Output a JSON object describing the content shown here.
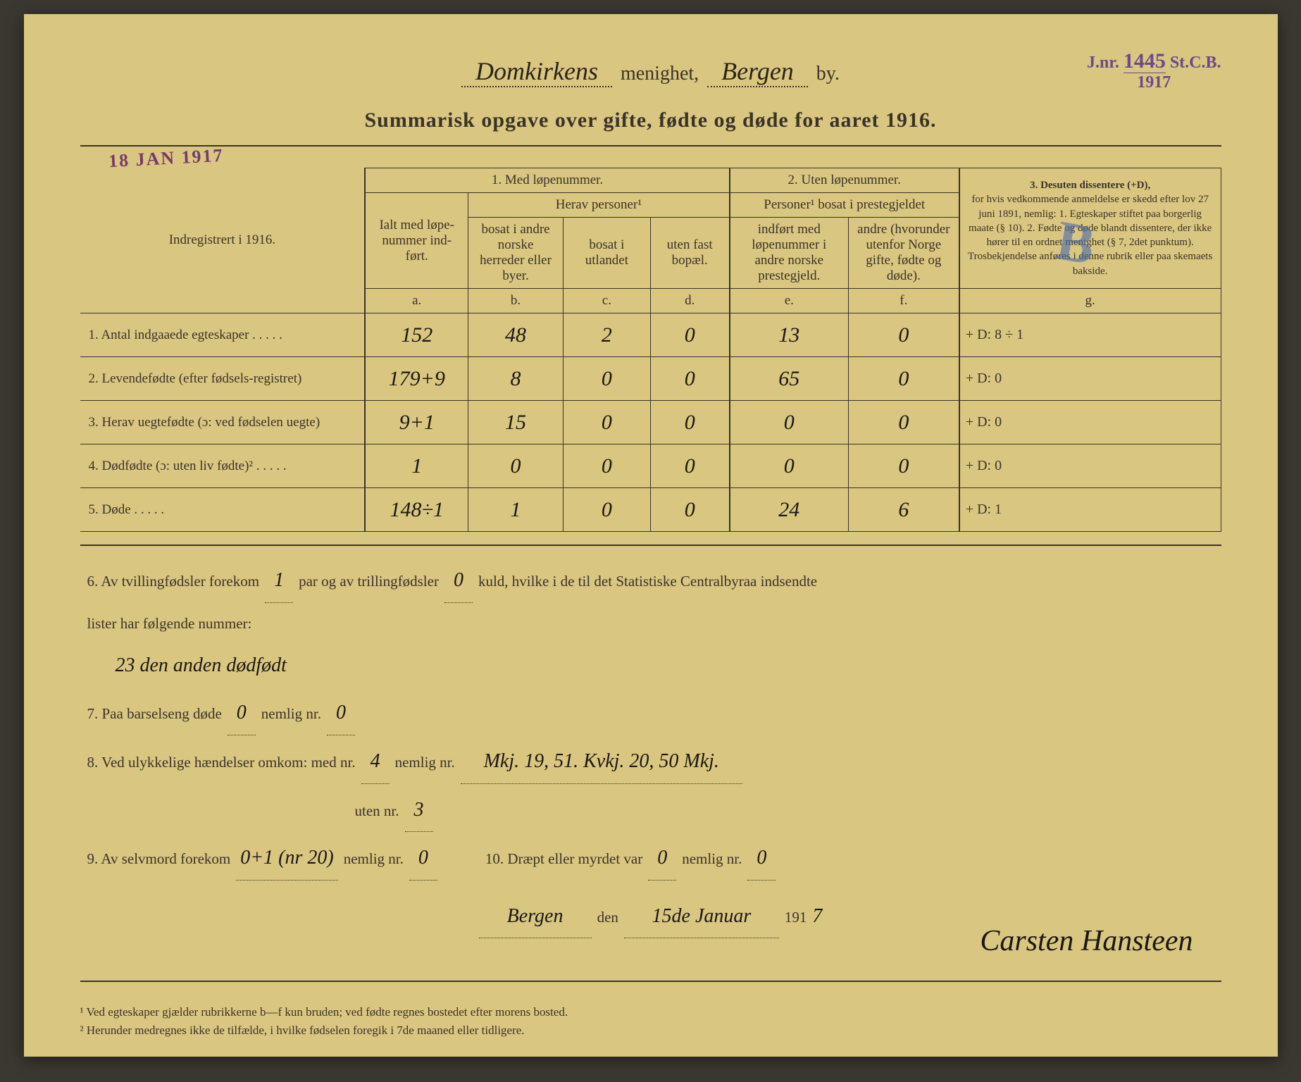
{
  "header": {
    "parish": "Domkirkens",
    "parish_label": "menighet,",
    "city": "Bergen",
    "city_label": "by.",
    "subtitle": "Summarisk opgave over gifte, fødte og døde for aaret 1916."
  },
  "stamps": {
    "date": "18 JAN 1917",
    "right_prefix": "J.nr.",
    "right_num": "1445",
    "right_suffix": "St.C.B.",
    "right_year": "1917",
    "blue_mark": "B"
  },
  "table_headers": {
    "registered_label": "Indregistrert i 1916.",
    "col1_title": "1. Med løpenummer.",
    "col1_left": "Ialt med løpe-nummer ind-ført.",
    "herav": "Herav personer¹",
    "col_b": "bosat i andre norske herreder eller byer.",
    "col_c": "bosat i utlandet",
    "col_d": "uten fast bopæl.",
    "col2_title": "2. Uten løpenummer.",
    "col2_sub": "Personer¹ bosat i prestegjeldet",
    "col_e": "indført med løpenummer i andre norske prestegjeld.",
    "col_f": "andre (hvorunder utenfor Norge gifte, fødte og døde).",
    "col3_title": "3. Desuten dissentere (+D),",
    "col3_text": "for hvis vedkommende anmeldelse er skedd efter lov 27 juni 1891, nemlig: 1. Egteskaper stiftet paa borgerlig maate (§ 10). 2. Fødte og døde blandt dissentere, der ikke hører til en ordnet menighet (§ 7, 2det punktum).",
    "col3_foot": "Trosbekjendelse anføres i denne rubrik eller paa skemaets bakside.",
    "letters": {
      "a": "a.",
      "b": "b.",
      "c": "c.",
      "d": "d.",
      "e": "e.",
      "f": "f.",
      "g": "g."
    }
  },
  "rows": [
    {
      "n": "1.",
      "label": "Antal indgaaede egteskaper",
      "a": "152",
      "b": "48",
      "c": "2",
      "d": "0",
      "e": "13",
      "f": "0",
      "g": "+ D: 8 ÷ 1"
    },
    {
      "n": "2.",
      "label": "Levendefødte (efter fødsels-registret)",
      "a": "179+9",
      "b": "8",
      "c": "0",
      "d": "0",
      "e": "65",
      "f": "0",
      "g": "+ D: 0"
    },
    {
      "n": "3.",
      "label": "Herav uegtefødte (ɔ: ved fødselen uegte)",
      "a": "9+1",
      "b": "15",
      "c": "0",
      "d": "0",
      "e": "0",
      "f": "0",
      "g": "+ D: 0"
    },
    {
      "n": "4.",
      "label": "Dødfødte (ɔ: uten liv fødte)²",
      "a": "1",
      "b": "0",
      "c": "0",
      "d": "0",
      "e": "0",
      "f": "0",
      "g": "+ D: 0"
    },
    {
      "n": "5.",
      "label": "Døde",
      "a": "148÷1",
      "b": "1",
      "c": "0",
      "d": "0",
      "e": "24",
      "f": "6",
      "g": "+ D: 1"
    }
  ],
  "below": {
    "line6_prefix": "6. Av tvillingfødsler forekom",
    "line6_mid": "par og av trillingfødsler",
    "line6_end": "kuld, hvilke i de til det Statistiske Centralbyraa indsendte",
    "twins": "1",
    "triplets": "0",
    "line6b": "lister har følgende nummer:",
    "line6_note": "23 den anden dødfødt",
    "line7_prefix": "7. Paa barselseng døde",
    "line7_mid": "nemlig nr.",
    "line7_a": "0",
    "line7_b": "0",
    "line8_prefix": "8. Ved ulykkelige hændelser omkom: med nr.",
    "line8_mid": "nemlig nr.",
    "line8_a": "4",
    "line8_b": "Mkj. 19, 51. Kvkj. 20, 50 Mkj.",
    "line8_uten": "uten nr.",
    "line8_c": "3",
    "line9_prefix": "9. Av selvmord forekom",
    "line9_mid": "nemlig nr.",
    "line9_a": "0+1 (nr 20)",
    "line9_b": "0",
    "line10_prefix": "10. Dræpt eller myrdet var",
    "line10_mid": "nemlig nr.",
    "line10_a": "0",
    "line10_b": "0",
    "sig_place": "Bergen",
    "sig_den": "den",
    "sig_date": "15de Januar",
    "sig_year_prefix": "191",
    "sig_year": "7",
    "signature": "Carsten Hansteen"
  },
  "footnotes": {
    "f1": "¹ Ved egteskaper gjælder rubrikkerne b—f kun bruden; ved fødte regnes bostedet efter morens bosted.",
    "f2": "² Herunder medregnes ikke de tilfælde, i hvilke fødselen foregik i 7de maaned eller tidligere."
  },
  "style": {
    "bg": "#d9c680",
    "text": "#3a3428",
    "stamp_purple": "#7a3a6a",
    "stamp_violet": "#6a4a8a",
    "handwriting": "#1a1812",
    "blue": "#4a6aaa"
  }
}
